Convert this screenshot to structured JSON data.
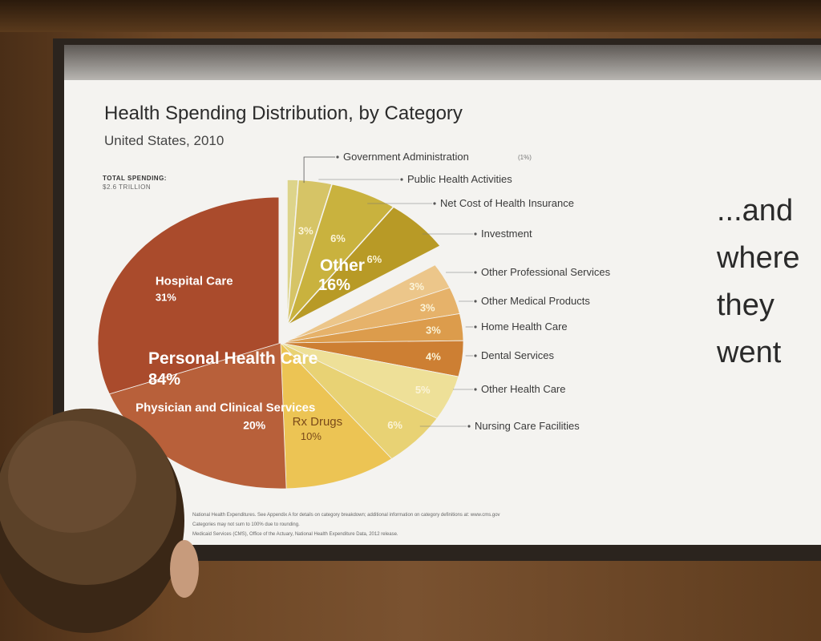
{
  "slide": {
    "side_text": [
      "...and",
      "where",
      "they",
      "went"
    ],
    "footnotes": [
      "National Health Expenditures. See Appendix A for details on category breakdown; additional information on category definitions at: www.cms.gov",
      "Categories may not sum to 100% due to rounding.",
      "Medicaid Services (CMS), Office of the Actuary, National Health Expenditure Data, 2012 release."
    ]
  },
  "chart_data": {
    "type": "pie",
    "title": "Health Spending Distribution, by Category",
    "subtitle": "United States, 2010",
    "total_label": "TOTAL SPENDING:",
    "total_value": "$2.6 TRILLION",
    "groups": [
      {
        "name": "Personal Health Care",
        "label": "84%",
        "value": 84
      },
      {
        "name": "Other",
        "label": "16%",
        "value": 16
      }
    ],
    "slices": [
      {
        "name": "Government Administration",
        "label": "",
        "callout": "(1%)",
        "value": 1,
        "group": "Other",
        "color": "#ddd48a"
      },
      {
        "name": "Public Health Activities",
        "label": "3%",
        "value": 3,
        "group": "Other",
        "color": "#d6c466"
      },
      {
        "name": "Net Cost of Health Insurance",
        "label": "6%",
        "value": 6,
        "group": "Other",
        "color": "#c9b23e"
      },
      {
        "name": "Investment",
        "label": "6%",
        "value": 6,
        "group": "Other",
        "color": "#b89a26"
      },
      {
        "name": "Other Professional Services",
        "label": "3%",
        "value": 3,
        "group": "Personal Health Care",
        "color": "#ecc68a"
      },
      {
        "name": "Other Medical Products",
        "label": "3%",
        "value": 3,
        "group": "Personal Health Care",
        "color": "#e6b26a"
      },
      {
        "name": "Home Health Care",
        "label": "3%",
        "value": 3,
        "group": "Personal Health Care",
        "color": "#dc9c4c"
      },
      {
        "name": "Dental Services",
        "label": "4%",
        "value": 4,
        "group": "Personal Health Care",
        "color": "#cd7f33"
      },
      {
        "name": "Other Health Care",
        "label": "5%",
        "value": 5,
        "group": "Personal Health Care",
        "color": "#eee098"
      },
      {
        "name": "Nursing Care Facilities",
        "label": "6%",
        "value": 6,
        "group": "Personal Health Care",
        "color": "#e8d274"
      },
      {
        "name": "Rx Drugs",
        "label": "10%",
        "value": 10,
        "group": "Personal Health Care",
        "color": "#ecc454"
      },
      {
        "name": "Physician and Clinical Services",
        "label": "20%",
        "value": 20,
        "group": "Personal Health Care",
        "color": "#b8603a"
      },
      {
        "name": "Hospital Care",
        "label": "31%",
        "value": 31,
        "group": "Personal Health Care",
        "color": "#aa4b2c"
      }
    ]
  }
}
